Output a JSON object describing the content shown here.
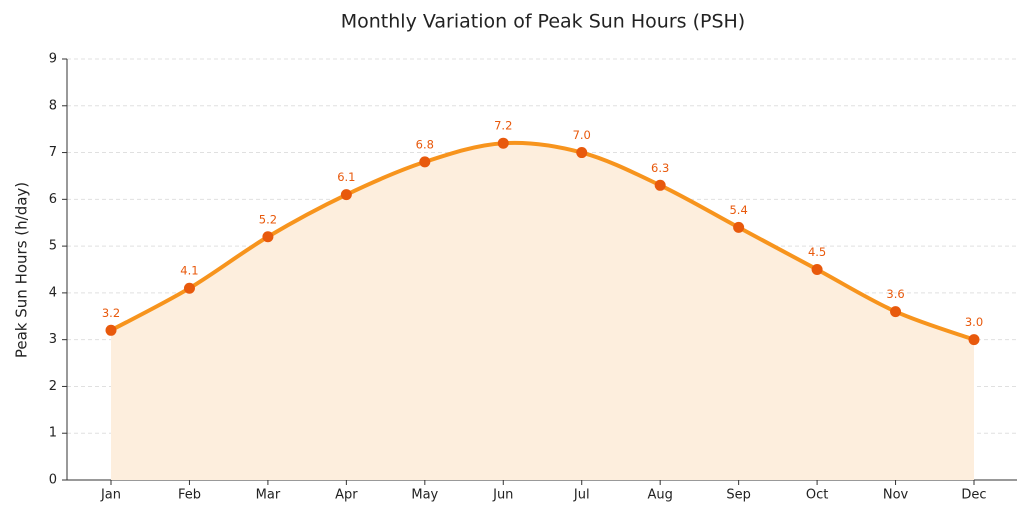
{
  "chart_data": {
    "type": "line",
    "title": "Monthly Variation of Peak Sun Hours (PSH)",
    "y_label": "Peak Sun Hours (h/day)",
    "categories": [
      "Jan",
      "Feb",
      "Mar",
      "Apr",
      "May",
      "Jun",
      "Jul",
      "Aug",
      "Sep",
      "Oct",
      "Nov",
      "Dec"
    ],
    "values": [
      3.2,
      4.1,
      5.2,
      6.1,
      6.8,
      7.2,
      7.0,
      6.3,
      5.4,
      4.5,
      3.6,
      3.0
    ],
    "value_labels": [
      "3.2",
      "4.1",
      "5.2",
      "6.1",
      "6.8",
      "7.2",
      "7.0",
      "6.3",
      "5.4",
      "4.5",
      "3.6",
      "3.0"
    ],
    "color": "#f7941d",
    "marker_color": "#e8590c",
    "area_color": "#fdeedd",
    "ylim": [
      0,
      9
    ],
    "yticks": [
      0,
      1,
      2,
      3,
      4,
      5,
      6,
      7,
      8,
      9
    ],
    "grid": true
  }
}
